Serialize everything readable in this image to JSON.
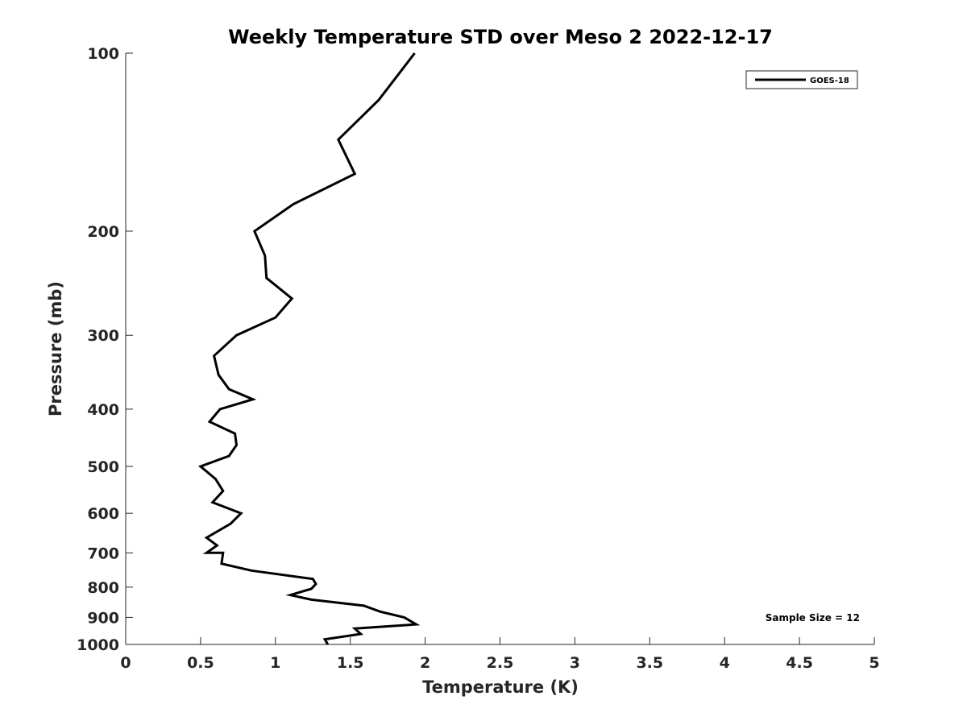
{
  "chart_data": {
    "type": "line",
    "title": "Weekly Temperature STD over Meso 2 2022-12-17",
    "xlabel": "Temperature (K)",
    "ylabel": "Pressure (mb)",
    "xlim": [
      0,
      5
    ],
    "ylim": [
      1000,
      100
    ],
    "y_scale": "log",
    "y_reversed": true,
    "grid": false,
    "legend_position": "top-right",
    "x_ticks": [
      0,
      0.5,
      1,
      1.5,
      2,
      2.5,
      3,
      3.5,
      4,
      4.5,
      5
    ],
    "x_tick_labels": [
      "0",
      "0.5",
      "1",
      "1.5",
      "2",
      "2.5",
      "3",
      "3.5",
      "4",
      "4.5",
      "5"
    ],
    "y_ticks": [
      100,
      200,
      300,
      400,
      500,
      600,
      700,
      800,
      900,
      1000
    ],
    "y_tick_labels": [
      "100",
      "200",
      "300",
      "400",
      "500",
      "600",
      "700",
      "800",
      "900",
      "1000"
    ],
    "annotation": "Sample Size = 12",
    "series": [
      {
        "name": "GOES-18",
        "color": "#000000",
        "x": [
          1.93,
          1.69,
          1.42,
          1.53,
          1.12,
          0.86,
          0.93,
          0.94,
          1.11,
          1.0,
          0.74,
          0.59,
          0.62,
          0.69,
          0.85,
          0.63,
          0.56,
          0.73,
          0.74,
          0.69,
          0.5,
          0.6,
          0.65,
          0.58,
          0.77,
          0.7,
          0.54,
          0.61,
          0.54,
          0.65,
          0.64,
          0.84,
          1.25,
          1.27,
          1.24,
          1.1,
          1.24,
          1.59,
          1.7,
          1.86,
          1.94,
          1.53,
          1.57,
          1.33,
          1.35
        ],
        "y": [
          100,
          120,
          140,
          160,
          180,
          200,
          220,
          240,
          260,
          280,
          300,
          325,
          350,
          370,
          385,
          400,
          420,
          440,
          460,
          480,
          500,
          525,
          550,
          575,
          600,
          625,
          660,
          680,
          700,
          700,
          730,
          750,
          775,
          790,
          805,
          825,
          840,
          860,
          880,
          900,
          925,
          940,
          960,
          980,
          1000
        ]
      }
    ]
  }
}
